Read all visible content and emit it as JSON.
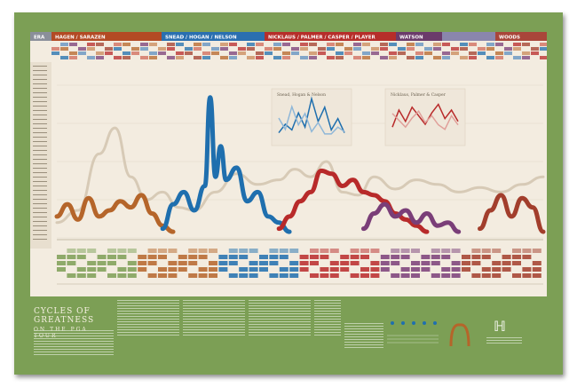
{
  "title": {
    "line1": "CYCLES OF GREATNESS",
    "line2": "ON THE PGA TOUR"
  },
  "eras": [
    {
      "label": "ERA",
      "color": "#8a8f9a"
    },
    {
      "label": "HAGEN / SARAZEN",
      "color": "#b34a24"
    },
    {
      "label": "SNEAD / HOGAN / NELSON",
      "color": "#2a6fb0"
    },
    {
      "label": "NICKLAUS / PALMER / CASPER / PLAYER",
      "color": "#b62e2a"
    },
    {
      "label": "WATSON",
      "color": "#6b3b6b"
    },
    {
      "label": "",
      "color": "#8a86ad"
    },
    {
      "label": "WOODS",
      "color": "#a9463a"
    }
  ],
  "inset_titles": {
    "left": "Snead, Hogan & Nelson",
    "right": "Nicklaus, Palmer & Casper"
  },
  "colors": {
    "hagen": "#b5652a",
    "snead": "#1f6fae",
    "nicklaus": "#b82a2a",
    "watson": "#7a3e78",
    "woods": "#a23e2c",
    "background_players": "#d4c7b1",
    "poster_green": "#7c9f55"
  },
  "chart_data": {
    "type": "line",
    "title": "",
    "xlabel": "",
    "ylabel": "",
    "ylim": [
      0,
      100
    ],
    "series": [
      {
        "color": "#d4c7b1",
        "x": [
          1916,
          1920,
          1924,
          1927,
          1930,
          1933,
          1936,
          1939,
          1942,
          1946,
          1950,
          1954,
          1958,
          1961,
          1964,
          1967,
          1970,
          1973,
          1976,
          1980,
          1984,
          1988,
          1992,
          1996,
          2000,
          2004,
          2008
        ],
        "values": [
          10,
          18,
          55,
          72,
          40,
          25,
          30,
          20,
          18,
          30,
          42,
          35,
          38,
          45,
          40,
          50,
          30,
          28,
          40,
          32,
          38,
          35,
          30,
          33,
          30,
          35,
          40
        ]
      },
      {
        "color": "#b5652a",
        "x": [
          1916,
          1918,
          1920,
          1922,
          1924,
          1926,
          1928,
          1930,
          1932,
          1934,
          1936,
          1938
        ],
        "values": [
          14,
          22,
          12,
          26,
          14,
          18,
          24,
          20,
          28,
          16,
          8,
          4
        ]
      },
      {
        "color": "#1f6fae",
        "x": [
          1936,
          1938,
          1940,
          1942,
          1944,
          1945,
          1946,
          1947,
          1948,
          1950,
          1952,
          1954,
          1956,
          1958,
          1960
        ],
        "values": [
          6,
          22,
          30,
          18,
          34,
          92,
          40,
          60,
          38,
          46,
          24,
          30,
          14,
          10,
          4
        ]
      },
      {
        "color": "#b82a2a",
        "x": [
          1958,
          1960,
          1962,
          1964,
          1966,
          1968,
          1970,
          1972,
          1974,
          1976,
          1978,
          1980,
          1982,
          1984,
          1986
        ],
        "values": [
          6,
          14,
          24,
          30,
          44,
          42,
          34,
          38,
          30,
          28,
          24,
          16,
          12,
          8,
          4
        ]
      },
      {
        "color": "#7a3e78",
        "x": [
          1974,
          1976,
          1978,
          1980,
          1982,
          1984,
          1986,
          1988,
          1990,
          1992
        ],
        "values": [
          6,
          16,
          22,
          14,
          18,
          10,
          16,
          8,
          10,
          4
        ]
      },
      {
        "color": "#a23e2c",
        "x": [
          1996,
          1998,
          2000,
          2002,
          2004,
          2006,
          2008
        ],
        "values": [
          6,
          18,
          28,
          14,
          26,
          20,
          4
        ]
      }
    ],
    "insets": [
      {
        "name": "Snead, Hogan & Nelson",
        "values": [
          4,
          10,
          6,
          18,
          8,
          28,
          12,
          22,
          6,
          14,
          4
        ]
      },
      {
        "name": "Nicklaus, Palmer & Casper",
        "values": [
          8,
          20,
          12,
          22,
          16,
          10,
          18,
          24,
          14,
          20,
          12
        ]
      }
    ]
  }
}
